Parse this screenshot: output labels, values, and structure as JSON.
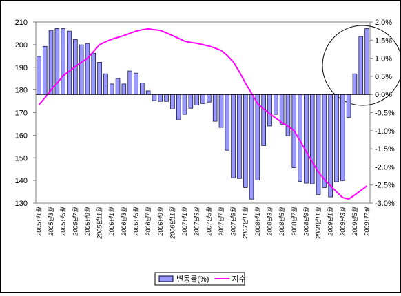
{
  "chart_data": {
    "type": "bar-line",
    "categories": [
      "2005년1월",
      null,
      "2005년3월",
      null,
      "2005년5월",
      null,
      "2005년7월",
      null,
      "2005년9월",
      null,
      "2005년11월",
      null,
      "2006년1월",
      null,
      "2006년3월",
      null,
      "2006년5월",
      null,
      "2006년7월",
      null,
      "2006년9월",
      null,
      "2006년11월",
      null,
      "2007년1월",
      null,
      "2007년3월",
      null,
      "2007년5월",
      null,
      "2007년7월",
      null,
      "2007년9월",
      null,
      "2007년11월",
      null,
      "2008년1월",
      null,
      "2008년3월",
      null,
      "2008년5월",
      null,
      "2008년7월",
      null,
      "2008년9월",
      null,
      "2008년11월",
      null,
      "2009년1월",
      null,
      "2009년3월",
      null,
      "2009년5월",
      null,
      "2009년7월"
    ],
    "series": [
      {
        "name": "변동률(%)",
        "type": "bar",
        "axis": "y2",
        "color": "#9999ff",
        "values": [
          1.05,
          1.33,
          1.77,
          1.82,
          1.82,
          1.75,
          1.52,
          1.37,
          1.41,
          1.14,
          0.89,
          0.57,
          0.29,
          0.44,
          0.29,
          0.65,
          0.59,
          0.32,
          0.1,
          -0.17,
          -0.19,
          -0.19,
          -0.4,
          -0.7,
          -0.55,
          -0.38,
          -0.29,
          -0.25,
          -0.21,
          -0.74,
          -0.91,
          -1.54,
          -2.3,
          -2.32,
          -2.57,
          -2.89,
          -2.36,
          -1.41,
          -0.87,
          -0.55,
          -0.82,
          -1.14,
          -2.02,
          -2.4,
          -2.45,
          -2.47,
          -2.76,
          -2.57,
          -2.83,
          -2.41,
          -2.38,
          -0.63,
          0.57,
          1.6,
          1.82
        ]
      },
      {
        "name": "지수",
        "type": "line",
        "color": "#ff00ff",
        "values": [
          173.5,
          176.5,
          180,
          183,
          186.3,
          188.3,
          190.3,
          192.2,
          194,
          197,
          200,
          201.3,
          202.4,
          203.2,
          204,
          205,
          206,
          206.6,
          207,
          206.6,
          206.3,
          205.2,
          204,
          202.8,
          201.5,
          201,
          200.6,
          200,
          199.4,
          198.5,
          197.5,
          195.2,
          192.4,
          188,
          183,
          178.5,
          174,
          171.5,
          169.5,
          167.5,
          165.6,
          164,
          162,
          157.5,
          152.8,
          148.2,
          143.7,
          140.5,
          137.6,
          135,
          132.4,
          131.8,
          133.6,
          135.6,
          137.6
        ]
      }
    ],
    "ylim": [
      130,
      210
    ],
    "yticks": [
      130,
      140,
      150,
      160,
      170,
      180,
      190,
      200,
      210
    ],
    "y2lim": [
      -3,
      2
    ],
    "y2ticks": [
      {
        "value": -3,
        "label": "-3.0%"
      },
      {
        "value": -2.5,
        "label": "-2.5%"
      },
      {
        "value": -2,
        "label": "-2.0%"
      },
      {
        "value": -1.5,
        "label": "-1.5%"
      },
      {
        "value": -1,
        "label": "-1.0%"
      },
      {
        "value": -0.5,
        "label": "-0.5%"
      },
      {
        "value": 0,
        "label": "0.0%"
      },
      {
        "value": 0.5,
        "label": "0.5%"
      },
      {
        "value": 1,
        "label": "1.0%"
      },
      {
        "value": 1.5,
        "label": "1.5%"
      },
      {
        "value": 2,
        "label": "2.0%"
      }
    ],
    "legend": "bottom"
  }
}
